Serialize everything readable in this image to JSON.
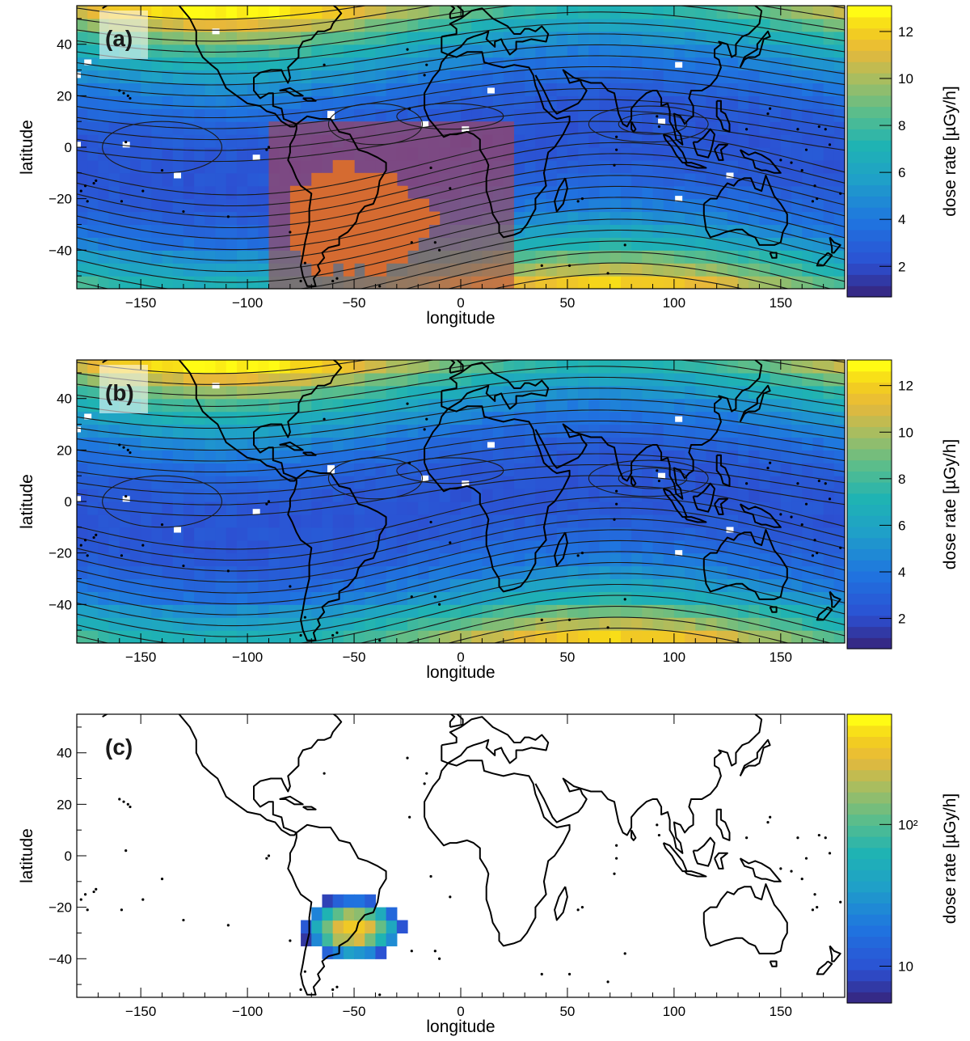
{
  "panels": [
    {
      "id": "a",
      "label": "(a)",
      "xlabel": "longitude",
      "ylabel": "latitude",
      "colorbar_label": "dose rate [µGy/h]",
      "colorbar_scale": "linear",
      "colorbar_ticks": [
        "2",
        "4",
        "6",
        "8",
        "10",
        "12"
      ],
      "x_ticks": [
        "−150",
        "−100",
        "−50",
        "0",
        "50",
        "100",
        "150"
      ],
      "y_ticks": [
        "40",
        "20",
        "0",
        "−20",
        "−40"
      ],
      "overlay": "highlighted region over the South Atlantic",
      "contours": true
    },
    {
      "id": "b",
      "label": "(b)",
      "xlabel": "longitude",
      "ylabel": "latitude",
      "colorbar_label": "dose rate [µGy/h]",
      "colorbar_scale": "linear",
      "colorbar_ticks": [
        "2",
        "4",
        "6",
        "8",
        "10",
        "12"
      ],
      "x_ticks": [
        "−150",
        "−100",
        "−50",
        "0",
        "50",
        "100",
        "150"
      ],
      "y_ticks": [
        "40",
        "20",
        "0",
        "−20",
        "−40"
      ],
      "contours": true
    },
    {
      "id": "c",
      "label": "(c)",
      "xlabel": "longitude",
      "ylabel": "latitude",
      "colorbar_label": "dose rate [µGy/h]",
      "colorbar_scale": "log",
      "colorbar_ticks": [
        "10",
        "10²"
      ],
      "x_ticks": [
        "−150",
        "−100",
        "−50",
        "0",
        "50",
        "100",
        "150"
      ],
      "y_ticks": [
        "40",
        "20",
        "0",
        "−20",
        "−40"
      ],
      "contours": false
    }
  ],
  "map_data": {
    "lon_range": [
      -180,
      180
    ],
    "lat_range": [
      -55,
      55
    ],
    "bin_size_deg": 5,
    "colors": {
      "low": "#2c50d2",
      "mid": "#1fb3b3",
      "high": "#f5d21a",
      "max": "#ffff00",
      "overlay": "#c04040",
      "coast": "#000000",
      "contour": "#1a1a1a"
    },
    "highlight_box": {
      "lon": [
        -90,
        25
      ],
      "lat": [
        -55,
        10
      ]
    },
    "saa_center": {
      "lon": -50,
      "lat": -28
    }
  }
}
